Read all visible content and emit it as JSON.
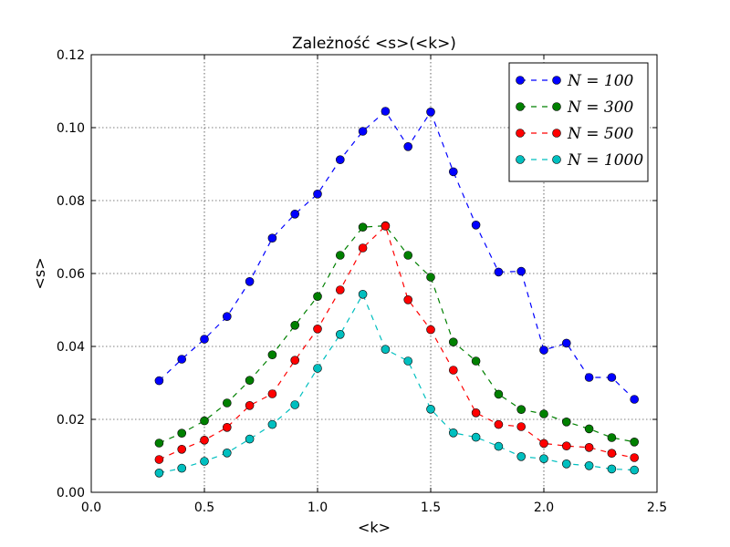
{
  "chart_data": {
    "type": "line",
    "title": "Zależność <s>(<k>)",
    "xlabel": "<k>",
    "ylabel": "<s>",
    "xlim": [
      0.0,
      2.5
    ],
    "ylim": [
      0.0,
      0.12
    ],
    "x_ticks": [
      "0.0",
      "0.5",
      "1.0",
      "1.5",
      "2.0",
      "2.5"
    ],
    "y_ticks": [
      "0.00",
      "0.02",
      "0.04",
      "0.06",
      "0.08",
      "0.10",
      "0.12"
    ],
    "grid": true,
    "legend_position": "top-right",
    "x": [
      0.3,
      0.4,
      0.5,
      0.6,
      0.7,
      0.8,
      0.9,
      1.0,
      1.1,
      1.2,
      1.3,
      1.4,
      1.5,
      1.6,
      1.7,
      1.8,
      1.9,
      2.0,
      2.1,
      2.2,
      2.3,
      2.4
    ],
    "series": [
      {
        "name": "N = 100",
        "color": "#0000ff",
        "values": [
          0.0306,
          0.0365,
          0.042,
          0.0482,
          0.0578,
          0.0697,
          0.0763,
          0.0818,
          0.0912,
          0.099,
          0.1045,
          0.0948,
          0.1043,
          0.0879,
          0.0733,
          0.0604,
          0.0606,
          0.039,
          0.0409,
          0.0315,
          0.0315,
          0.0255
        ]
      },
      {
        "name": "N = 300",
        "color": "#008000",
        "values": [
          0.0135,
          0.0162,
          0.0196,
          0.0245,
          0.0307,
          0.0377,
          0.0458,
          0.0537,
          0.065,
          0.0727,
          0.0731,
          0.065,
          0.059,
          0.0412,
          0.036,
          0.0269,
          0.0227,
          0.0215,
          0.0193,
          0.0174,
          0.015,
          0.0138
        ]
      },
      {
        "name": "N = 500",
        "color": "#ff0000",
        "values": [
          0.009,
          0.0118,
          0.0143,
          0.0178,
          0.0238,
          0.027,
          0.0362,
          0.0448,
          0.0555,
          0.067,
          0.073,
          0.0528,
          0.0446,
          0.0335,
          0.0218,
          0.0186,
          0.018,
          0.0134,
          0.0127,
          0.0123,
          0.0107,
          0.0095
        ]
      },
      {
        "name": "N = 1000",
        "color": "#00bfbf",
        "values": [
          0.0053,
          0.0066,
          0.0085,
          0.0108,
          0.0146,
          0.0186,
          0.024,
          0.034,
          0.0433,
          0.0543,
          0.0392,
          0.036,
          0.0228,
          0.0163,
          0.0151,
          0.0126,
          0.0098,
          0.0092,
          0.0078,
          0.0073,
          0.0064,
          0.0061
        ]
      }
    ]
  }
}
